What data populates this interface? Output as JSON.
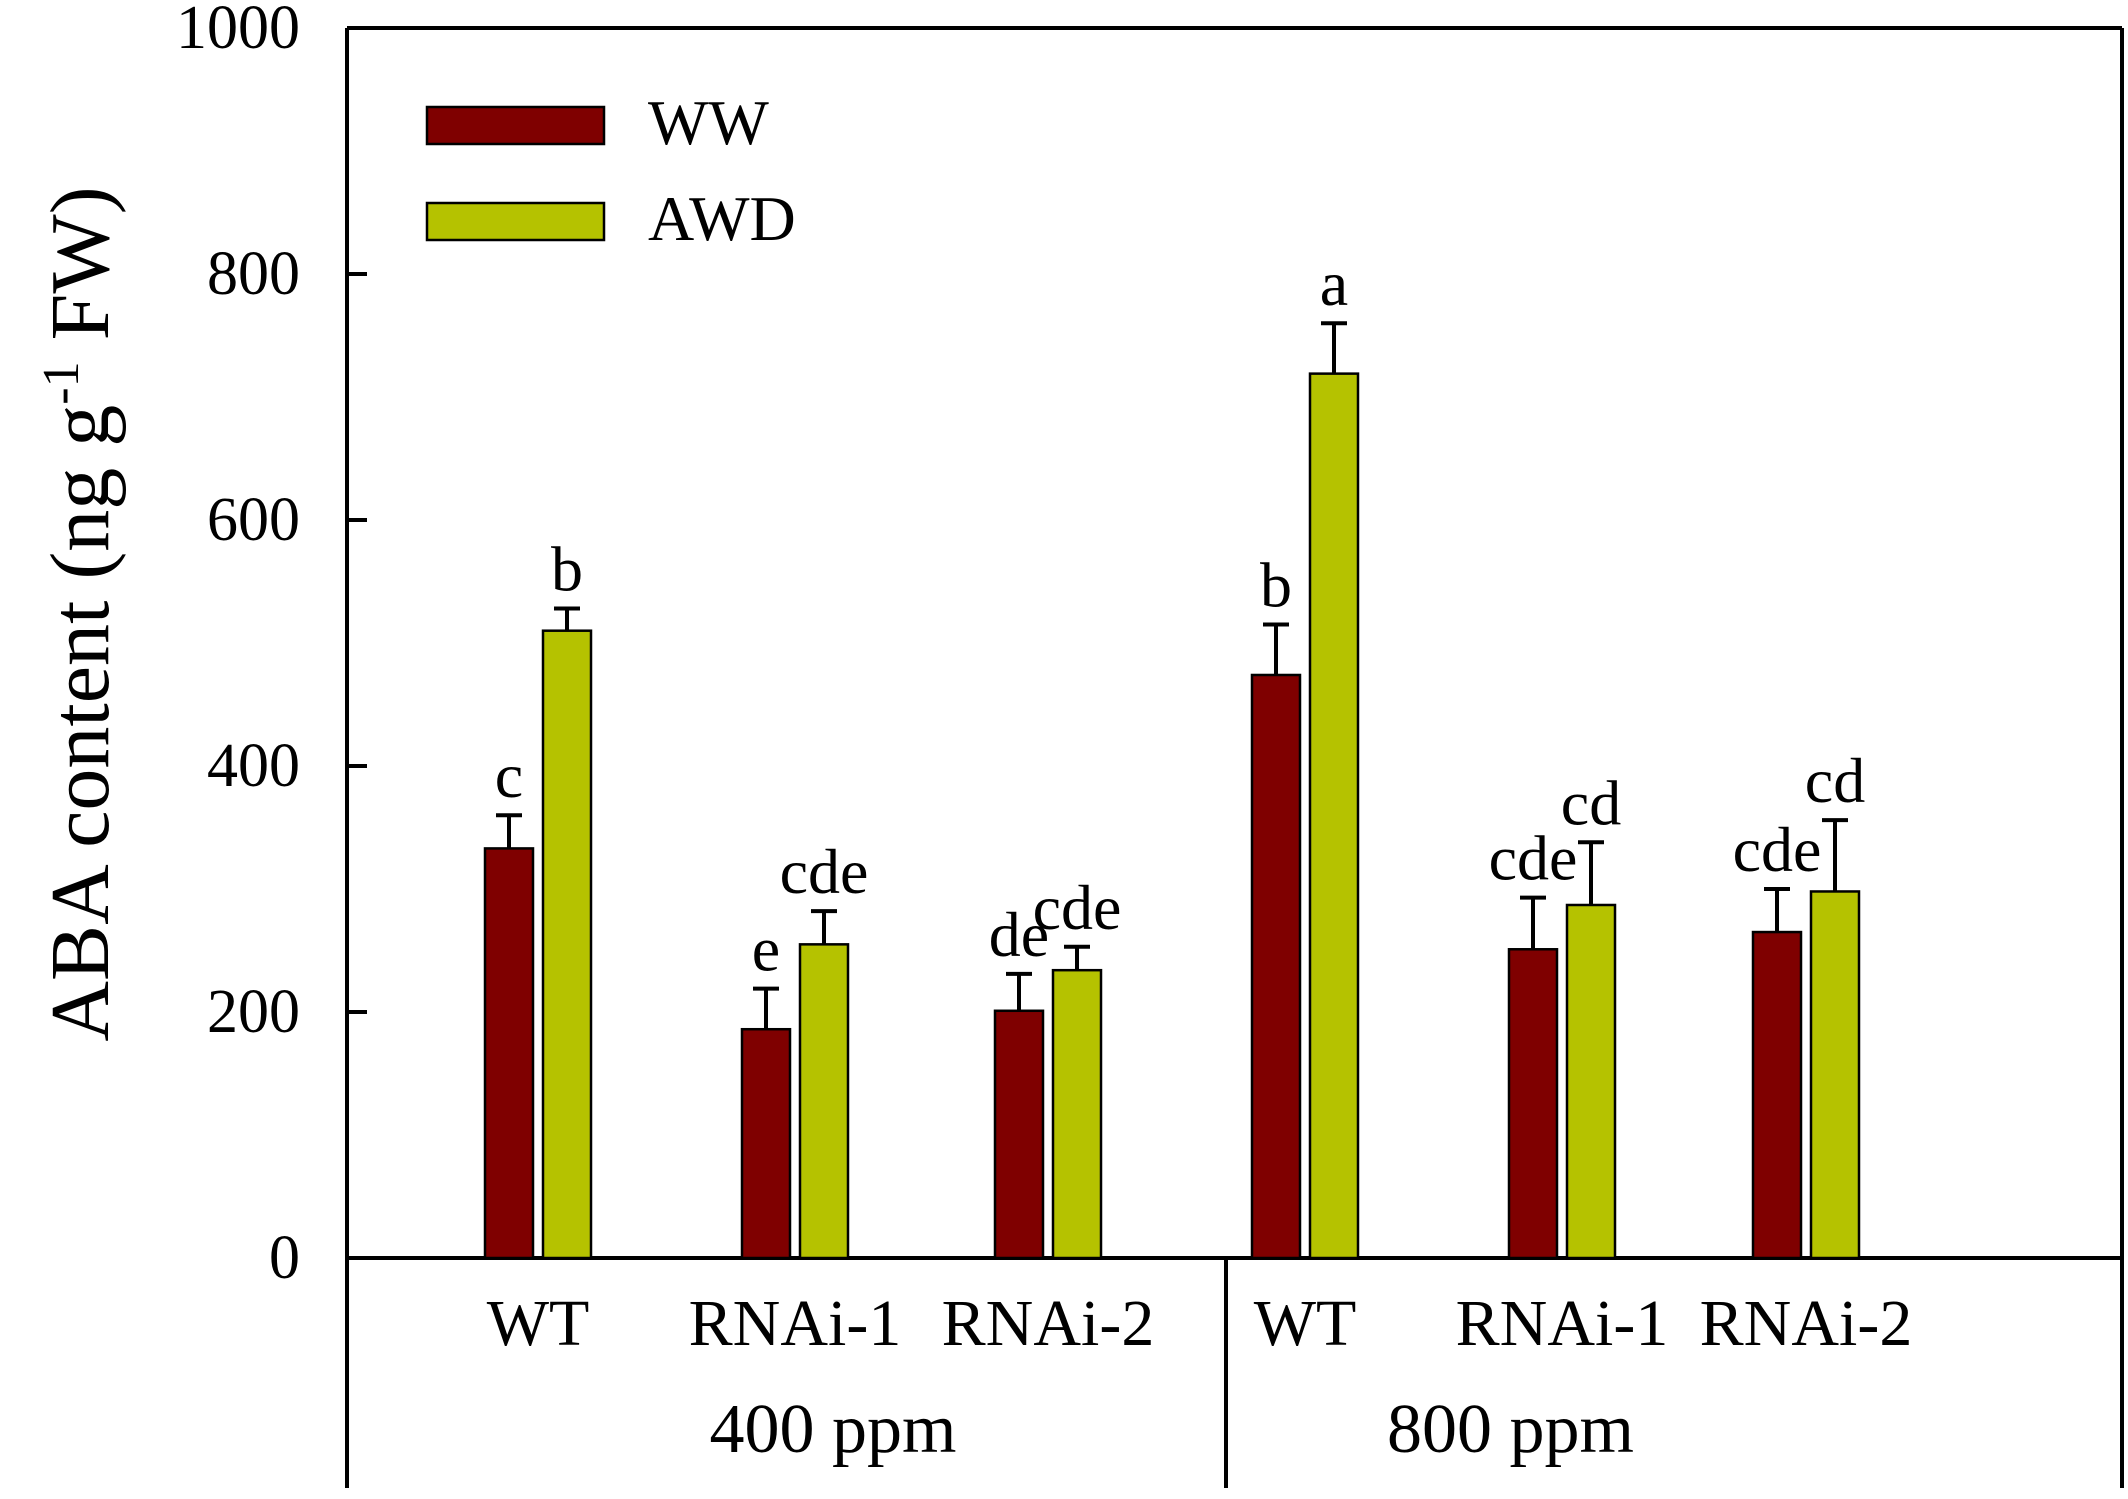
{
  "chart_data": {
    "type": "bar",
    "ylabel": "ABA content (ng g",
    "ylabel_sup": "-1",
    "ylabel_tail": " FW)",
    "ylim": [
      0,
      1000
    ],
    "yticks": [
      "0",
      "200",
      "400",
      "600",
      "800",
      "1000"
    ],
    "groups": [
      {
        "label": "400 ppm",
        "categories": [
          "WT",
          "RNAi-1",
          "RNAi-2"
        ]
      },
      {
        "label": "800 ppm",
        "categories": [
          "WT",
          "RNAi-1",
          "RNAi-2"
        ]
      }
    ],
    "categories": [
      "WT",
      "RNAi-1",
      "RNAi-2",
      "WT",
      "RNAi-1",
      "RNAi-2"
    ],
    "legend_position": "top-left",
    "series": [
      {
        "name": "WW",
        "color": "#7f0000",
        "values": [
          333,
          186,
          201,
          474,
          251,
          265
        ],
        "errors": [
          27,
          33,
          30,
          41,
          42,
          35
        ],
        "sig_letters": [
          "c",
          "e",
          "de",
          "b",
          "cde",
          "cde"
        ]
      },
      {
        "name": "AWD",
        "color": "#b5c200",
        "values": [
          510,
          255,
          234,
          719,
          287,
          298
        ],
        "errors": [
          18,
          27,
          19,
          41,
          51,
          58
        ],
        "sig_letters": [
          "b",
          "cde",
          "cde",
          "a",
          "cd",
          "cd"
        ]
      }
    ]
  }
}
